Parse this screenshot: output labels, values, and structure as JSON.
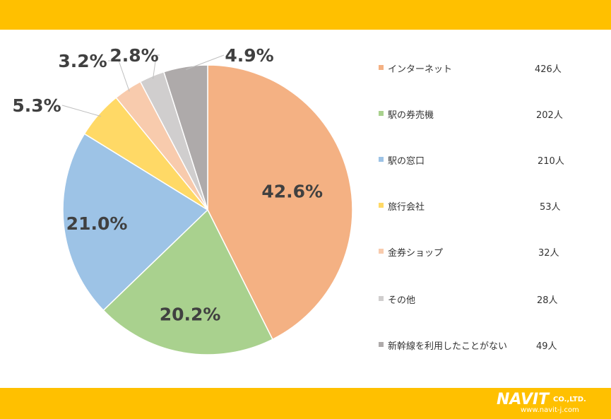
{
  "chart_data": {
    "type": "pie",
    "categories": [
      "インターネット",
      "駅の券売機",
      "駅の窓口",
      "旅行会社",
      "金券ショップ",
      "その他",
      "新幹線を利用したことがない"
    ],
    "values": [
      426,
      202,
      210,
      53,
      32,
      28,
      49
    ],
    "counts": [
      "426人",
      "202人",
      "210人",
      "53人",
      "32人",
      "28人",
      "49人"
    ],
    "percent_labels": [
      "42.6%",
      "20.2%",
      "21.0%",
      "5.3%",
      "3.2%",
      "2.8%",
      "4.9%"
    ],
    "colors": [
      "#F4B183",
      "#A9D18E",
      "#9DC3E6",
      "#FFD966",
      "#F8CBAD",
      "#D0CECE",
      "#AEAAAA"
    ]
  },
  "branding": {
    "logo_main": "NAVIT",
    "logo_sub": "CO.,LTD.",
    "logo_url": "www.navit-j.com"
  },
  "colors": {
    "band": "#FFC000",
    "background": "#ffffff"
  }
}
